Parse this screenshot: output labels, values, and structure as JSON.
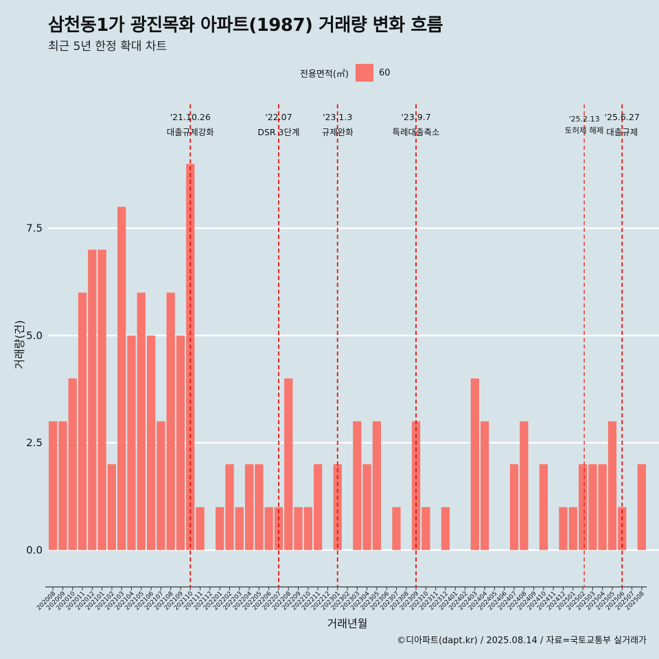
{
  "chart_data": {
    "type": "bar",
    "title": "삼천동1가 광진목화 아파트(1987) 거래량 변화 흐름",
    "subtitle": "최근 5년 한정 확대 차트",
    "xlabel": "거래년월",
    "ylabel": "거래량(건)",
    "ylim": [
      -0.7,
      10.5
    ],
    "y_ticks": [
      "0.0",
      "2.5",
      "5.0",
      "7.5"
    ],
    "y_tick_values": [
      0,
      2.5,
      5.0,
      7.5
    ],
    "legend": {
      "title": "전용면적(㎡)",
      "label": "60",
      "position": "top"
    },
    "bar_color": "#f8766d",
    "categories": [
      "202008",
      "202009",
      "202010",
      "202011",
      "202012",
      "202101",
      "202102",
      "202103",
      "202104",
      "202105",
      "202106",
      "202107",
      "202108",
      "202109",
      "202110",
      "202111",
      "202112",
      "202201",
      "202202",
      "202203",
      "202204",
      "202205",
      "202206",
      "202207",
      "202208",
      "202209",
      "202210",
      "202211",
      "202212",
      "202301",
      "202302",
      "202303",
      "202304",
      "202305",
      "202306",
      "202307",
      "202308",
      "202309",
      "202310",
      "202311",
      "202312",
      "202401",
      "202402",
      "202403",
      "202404",
      "202405",
      "202406",
      "202407",
      "202408",
      "202409",
      "202410",
      "202411",
      "202412",
      "202501",
      "202502",
      "202503",
      "202504",
      "202505",
      "202506",
      "202507",
      "202508"
    ],
    "values": [
      3,
      3,
      4,
      6,
      7,
      7,
      2,
      8,
      5,
      6,
      5,
      3,
      6,
      5,
      9,
      1,
      0,
      1,
      2,
      1,
      2,
      2,
      1,
      1,
      4,
      1,
      1,
      2,
      0,
      2,
      0,
      3,
      2,
      3,
      0,
      1,
      0,
      3,
      1,
      0,
      1,
      0,
      0,
      4,
      3,
      0,
      0,
      2,
      3,
      0,
      2,
      0,
      1,
      1,
      2,
      2,
      2,
      3,
      1,
      0,
      2
    ],
    "annotations": [
      {
        "category": "202110",
        "date": "'21.10.26",
        "label": "대출규제강화"
      },
      {
        "category": "202207",
        "date": "'22.07",
        "label": "DSR 3단계"
      },
      {
        "category": "202301",
        "date": "'23.1.3",
        "label": "규제완화"
      },
      {
        "category": "202309",
        "date": "'23.9.7",
        "label": "특례대출축소"
      },
      {
        "category": "202502",
        "date": "'25.2.13",
        "label": "토허제 해제"
      },
      {
        "category": "202506",
        "date": "'25.6.27",
        "label": "대출규제"
      }
    ],
    "annotation_color": "#e8120c",
    "grid": true
  },
  "caption": "©디아파트(dapt.kr) / 2025.08.14 / 자료=국토교통부 실거래가"
}
